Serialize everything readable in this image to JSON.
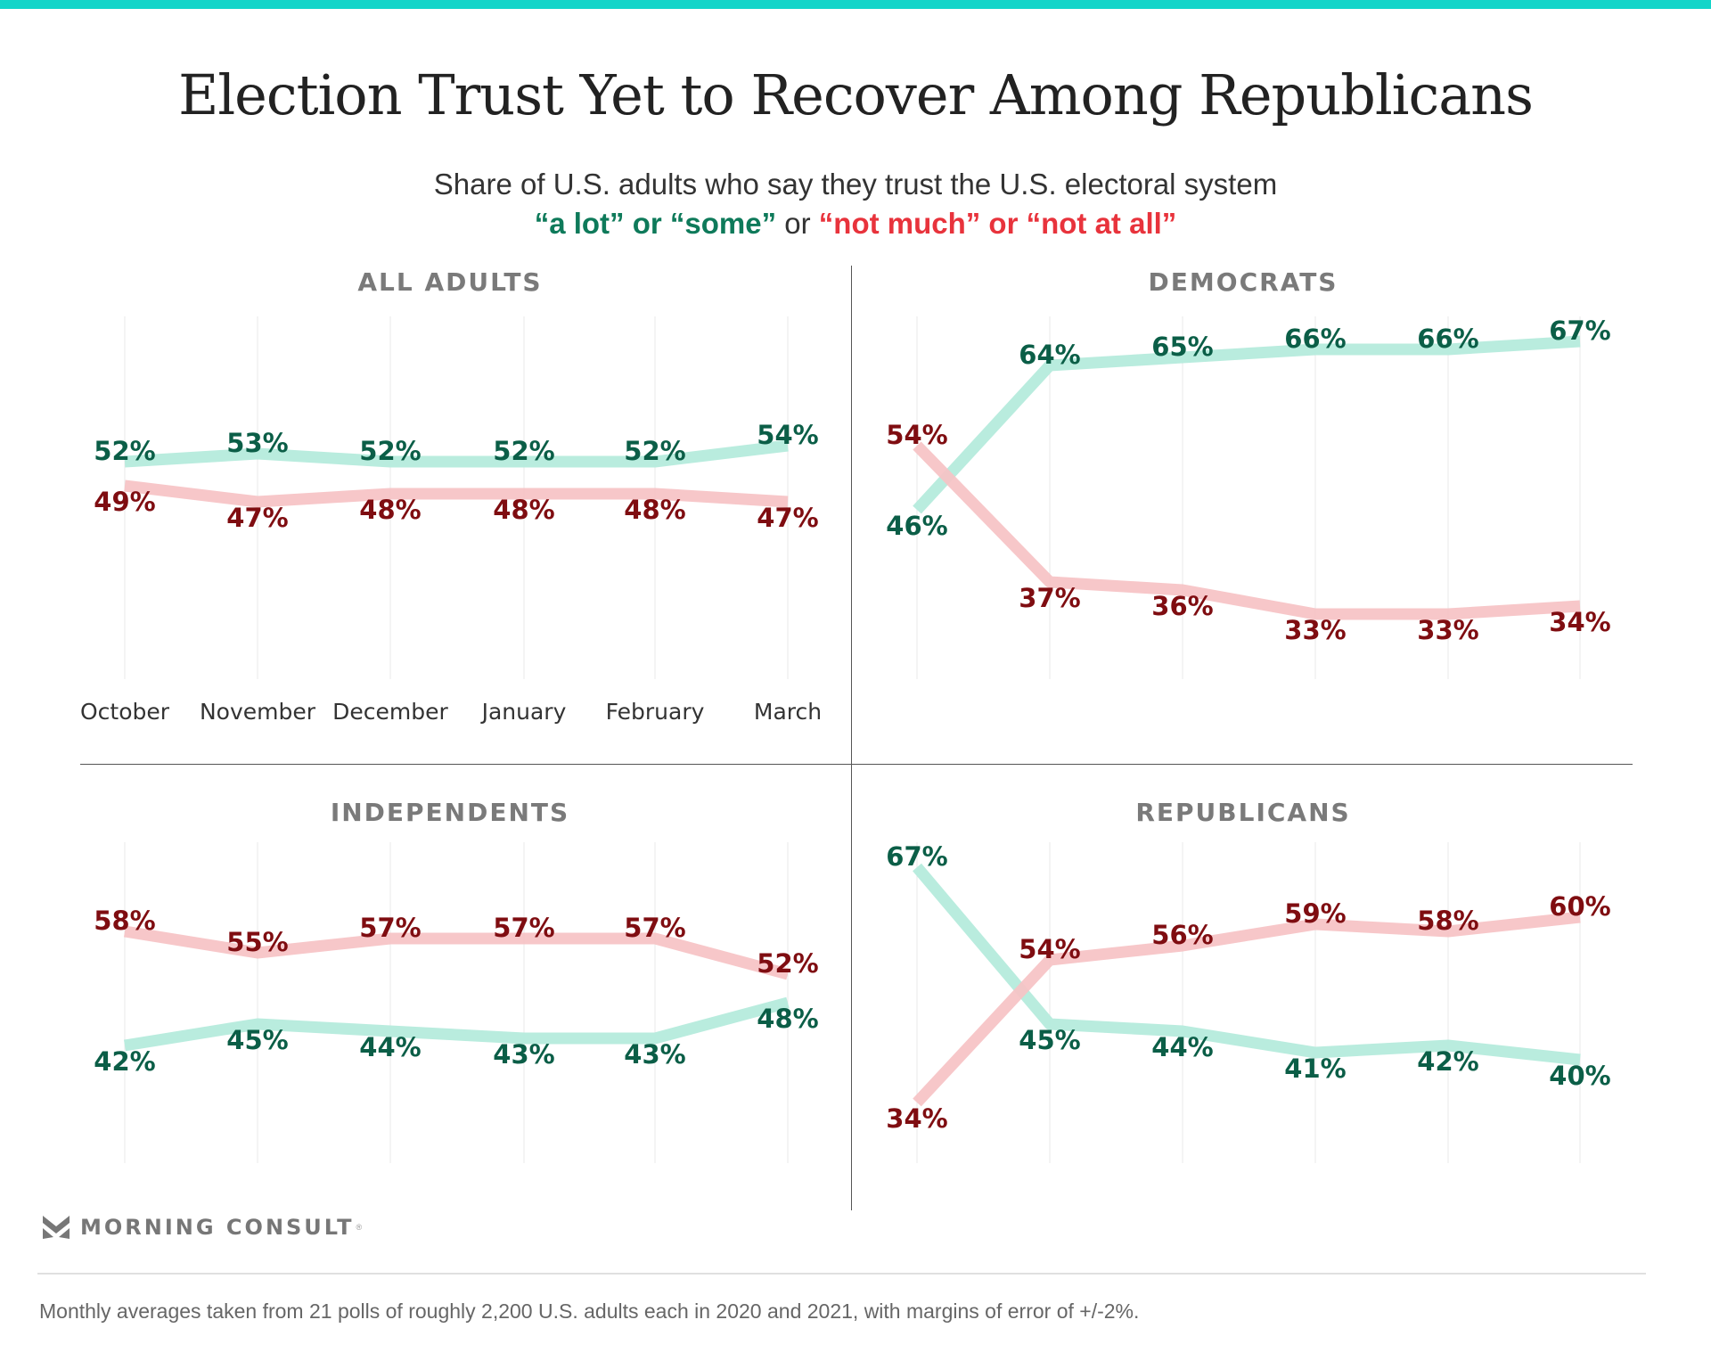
{
  "header": {
    "title": "Election Trust Yet to Recover Among Republicans",
    "subtitle_line1": "Share of U.S. adults who say they trust the U.S. electoral system",
    "subtitle_trust": "“a lot” or “some”",
    "subtitle_or": " or ",
    "subtitle_distrust": "“not much” or “not at all”"
  },
  "colors": {
    "accent_bar": "#13d5c9",
    "trust_line": "#b3eadb",
    "trust_label": "#0b5e47",
    "distrust_line": "#f6c2c4",
    "distrust_label": "#7f0d11"
  },
  "brand": {
    "name": "MORNING CONSULT",
    "mark": "®",
    "logo_icon": "morning-consult-chevron-icon"
  },
  "footer": {
    "note": "Monthly averages taken from 21 polls of roughly 2,200 U.S. adults each in 2020 and 2021, with margins of error of +/-2%."
  },
  "chart_data": [
    {
      "type": "line",
      "title": "ALL ADULTS",
      "categories": [
        "October",
        "November",
        "December",
        "January",
        "February",
        "March"
      ],
      "series": [
        {
          "name": "“a lot” or “some”",
          "values": [
            52,
            53,
            52,
            52,
            52,
            54
          ]
        },
        {
          "name": "“not much” or “not at all”",
          "values": [
            49,
            47,
            48,
            48,
            48,
            47
          ]
        }
      ],
      "ylim": [
        25,
        70
      ],
      "grid": "vertical",
      "xlabel": "",
      "ylabel": ""
    },
    {
      "type": "line",
      "title": "DEMOCRATS",
      "categories": [
        "October",
        "November",
        "December",
        "January",
        "February",
        "March"
      ],
      "series": [
        {
          "name": "“a lot” or “some”",
          "values": [
            46,
            64,
            65,
            66,
            66,
            67
          ]
        },
        {
          "name": "“not much” or “not at all”",
          "values": [
            54,
            37,
            36,
            33,
            33,
            34
          ]
        }
      ],
      "ylim": [
        25,
        70
      ],
      "grid": "vertical",
      "xlabel": "",
      "ylabel": ""
    },
    {
      "type": "line",
      "title": "INDEPENDENTS",
      "categories": [
        "October",
        "November",
        "December",
        "January",
        "February",
        "March"
      ],
      "series": [
        {
          "name": "“a lot” or “some”",
          "values": [
            42,
            45,
            44,
            43,
            43,
            48
          ]
        },
        {
          "name": "“not much” or “not at all”",
          "values": [
            58,
            55,
            57,
            57,
            57,
            52
          ]
        }
      ],
      "ylim": [
        25,
        70
      ],
      "grid": "vertical",
      "xlabel": "",
      "ylabel": ""
    },
    {
      "type": "line",
      "title": "REPUBLICANS",
      "categories": [
        "October",
        "November",
        "December",
        "January",
        "February",
        "March"
      ],
      "series": [
        {
          "name": "“a lot” or “some”",
          "values": [
            67,
            45,
            44,
            41,
            42,
            40
          ]
        },
        {
          "name": "“not much” or “not at all”",
          "values": [
            34,
            54,
            56,
            59,
            58,
            60
          ]
        }
      ],
      "ylim": [
        25,
        70
      ],
      "grid": "vertical",
      "xlabel": "",
      "ylabel": ""
    }
  ]
}
